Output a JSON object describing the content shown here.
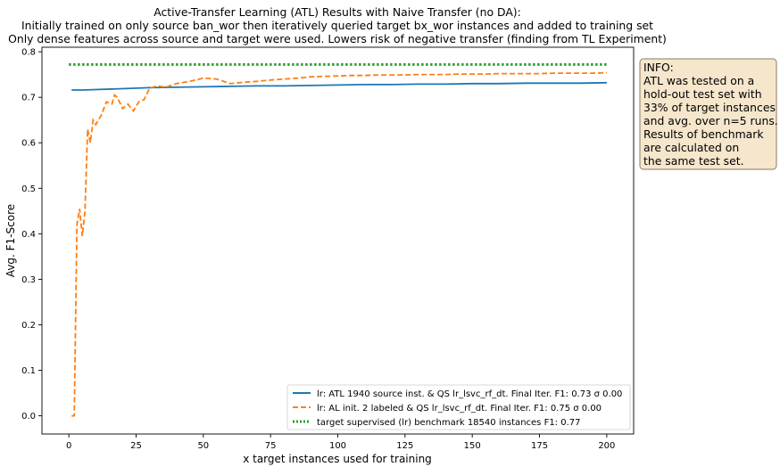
{
  "chart_data": {
    "type": "line",
    "title_lines": [
      "Active-Transfer Learning (ATL) Results with Naive Transfer (no DA):",
      "Initially trained on only source ban_wor then iteratively queried target bx_wor instances and added to training set",
      "Only dense features across source and target were used. Lowers risk of negative transfer (finding from TL Experiment)"
    ],
    "xlabel": "x target instances used for training",
    "ylabel": "Avg. F1-Score",
    "xlim": [
      -10,
      210
    ],
    "ylim": [
      -0.04,
      0.81
    ],
    "xticks": [
      0,
      25,
      50,
      75,
      100,
      125,
      150,
      175,
      200
    ],
    "yticks": [
      0.0,
      0.1,
      0.2,
      0.3,
      0.4,
      0.5,
      0.6,
      0.7,
      0.8
    ],
    "xtick_labels": [
      "0",
      "25",
      "50",
      "75",
      "100",
      "125",
      "150",
      "175",
      "200"
    ],
    "ytick_labels": [
      "0.0",
      "0.1",
      "0.2",
      "0.3",
      "0.4",
      "0.5",
      "0.6",
      "0.7",
      "0.8"
    ],
    "grid": false,
    "legend_position": "lower right",
    "series": [
      {
        "name": "lr: ATL 1940 source inst. & QS lr_lsvc_rf_dt. Final Iter. F1: 0.73 σ 0.00",
        "color": "#1f77b4",
        "style": "solid",
        "x": [
          1,
          5,
          10,
          20,
          30,
          40,
          50,
          60,
          70,
          80,
          90,
          100,
          110,
          120,
          130,
          140,
          150,
          160,
          170,
          180,
          190,
          200
        ],
        "y": [
          0.716,
          0.716,
          0.717,
          0.719,
          0.721,
          0.722,
          0.723,
          0.724,
          0.725,
          0.725,
          0.726,
          0.727,
          0.728,
          0.728,
          0.729,
          0.729,
          0.73,
          0.73,
          0.731,
          0.731,
          0.731,
          0.732
        ]
      },
      {
        "name": "lr: AL init. 2 labeled & QS lr_lsvc_rf_dt. Final Iter. F1: 0.75 σ 0.00",
        "color": "#ff7f0e",
        "style": "dashed",
        "x": [
          1,
          2,
          3,
          4,
          5,
          6,
          7,
          8,
          9,
          10,
          12,
          14,
          16,
          17,
          18,
          20,
          22,
          24,
          26,
          28,
          30,
          33,
          36,
          40,
          45,
          50,
          55,
          60,
          65,
          70,
          75,
          80,
          85,
          90,
          95,
          100,
          105,
          110,
          115,
          120,
          125,
          130,
          135,
          140,
          145,
          150,
          155,
          160,
          165,
          170,
          175,
          180,
          185,
          190,
          195,
          200
        ],
        "y": [
          0.0,
          0.0,
          0.42,
          0.455,
          0.395,
          0.45,
          0.63,
          0.6,
          0.65,
          0.64,
          0.66,
          0.69,
          0.685,
          0.705,
          0.7,
          0.675,
          0.685,
          0.67,
          0.69,
          0.695,
          0.72,
          0.725,
          0.722,
          0.73,
          0.735,
          0.742,
          0.74,
          0.73,
          0.733,
          0.735,
          0.738,
          0.74,
          0.742,
          0.745,
          0.746,
          0.747,
          0.748,
          0.748,
          0.749,
          0.749,
          0.749,
          0.75,
          0.75,
          0.75,
          0.751,
          0.751,
          0.751,
          0.752,
          0.752,
          0.752,
          0.752,
          0.753,
          0.753,
          0.753,
          0.753,
          0.754
        ]
      },
      {
        "name": "target supervised (lr) benchmark 18540 instances F1: 0.77",
        "color": "#2ca02c",
        "style": "dotted",
        "x": [
          0,
          200
        ],
        "y": [
          0.772,
          0.772
        ]
      }
    ],
    "info_box": {
      "lines": [
        "INFO:",
        "ATL was tested on a",
        "hold-out test set with",
        "33% of target instances",
        "and avg. over n=5 runs.",
        "Results of benchmark",
        "are calculated on",
        "the same test set."
      ],
      "background": "#f5e6cc",
      "border": "#8a7a66"
    }
  }
}
